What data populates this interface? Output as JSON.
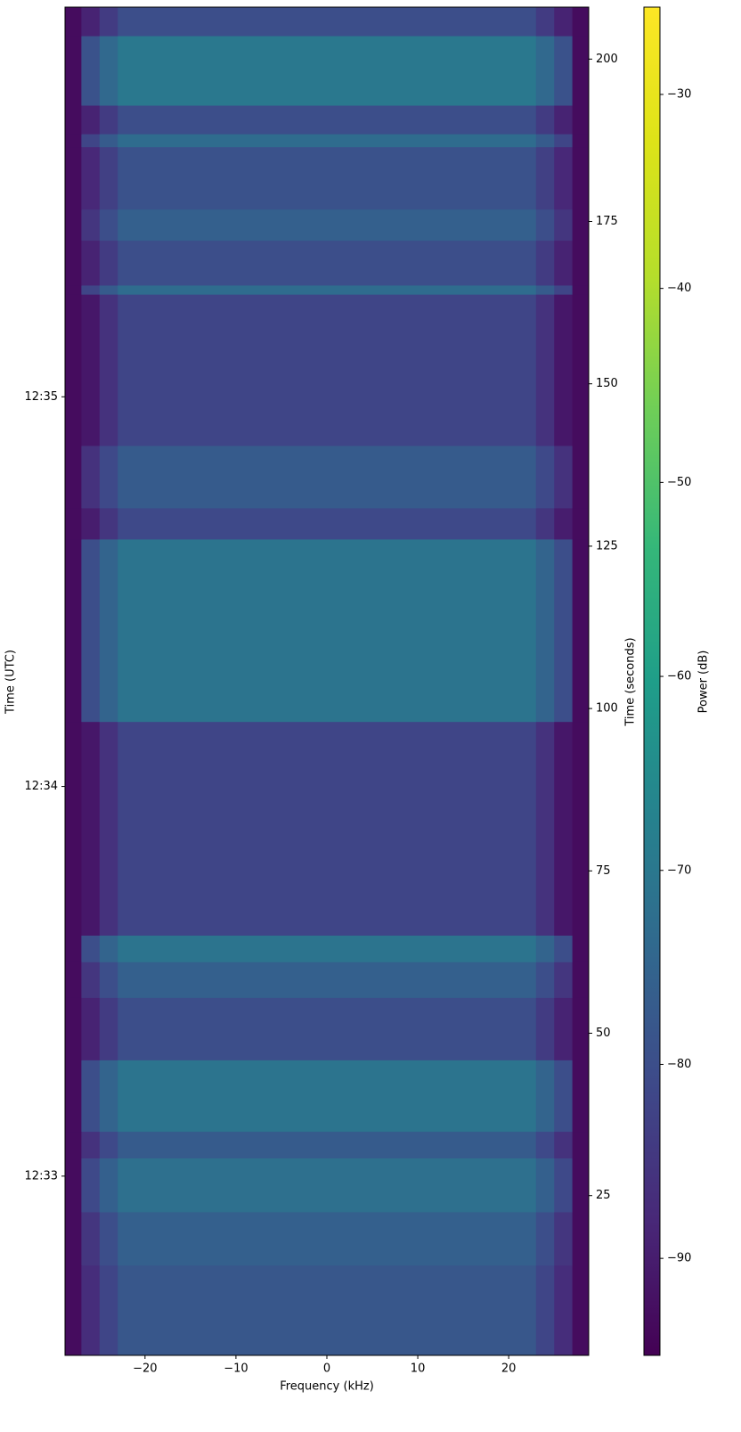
{
  "chart_data": {
    "type": "spectrogram",
    "xlabel": "Frequency (kHz)",
    "ylabel": "Time (UTC)",
    "y2label": "Time (seconds)",
    "colorbar_label": "Power (dB)",
    "colormap": "viridis",
    "freq_bins": [
      -28.8,
      -27,
      -25,
      -23,
      23,
      25,
      27,
      28.8
    ],
    "time_bins": [
      0.4,
      14.3,
      22.5,
      30.8,
      34.9,
      45.9,
      55.5,
      61.0,
      65.1,
      98.0,
      126.1,
      130.9,
      140.5,
      163.8,
      165.2,
      172.1,
      176.9,
      186.5,
      188.5,
      192.9,
      203.6,
      208
    ],
    "z": [
      [
        -93,
        -87,
        -82,
        -78,
        -82,
        -87,
        -93
      ],
      [
        -93,
        -85,
        -80,
        -76,
        -80,
        -85,
        -93
      ],
      [
        -93,
        -81,
        -76,
        -72,
        -76,
        -81,
        -93
      ],
      [
        -93,
        -86,
        -81,
        -77,
        -81,
        -86,
        -93
      ],
      [
        -93,
        -80,
        -75,
        -71,
        -75,
        -80,
        -93
      ],
      [
        -93,
        -89,
        -84,
        -80,
        -84,
        -89,
        -93
      ],
      [
        -93,
        -85,
        -80,
        -76,
        -80,
        -85,
        -93
      ],
      [
        -93,
        -80,
        -75,
        -71,
        -75,
        -80,
        -93
      ],
      [
        -93,
        -91,
        -86,
        -82,
        -86,
        -91,
        -93
      ],
      [
        -93,
        -80,
        -75,
        -71,
        -75,
        -80,
        -93
      ],
      [
        -93,
        -90,
        -85,
        -81,
        -85,
        -90,
        -93
      ],
      [
        -93,
        -86,
        -81,
        -77,
        -81,
        -86,
        -93
      ],
      [
        -93,
        -91,
        -86,
        -82,
        -86,
        -91,
        -93
      ],
      [
        -93,
        -82,
        -77,
        -73,
        -77,
        -82,
        -93
      ],
      [
        -93,
        -89,
        -84,
        -80,
        -84,
        -89,
        -93
      ],
      [
        -93,
        -85,
        -80,
        -76,
        -80,
        -85,
        -93
      ],
      [
        -93,
        -88,
        -83,
        -79,
        -83,
        -88,
        -93
      ],
      [
        -93,
        -82,
        -77,
        -73,
        -77,
        -82,
        -93
      ],
      [
        -93,
        -89,
        -84,
        -80,
        -84,
        -89,
        -93
      ],
      [
        -93,
        -79,
        -74,
        -70,
        -74,
        -79,
        -93
      ],
      [
        -93,
        -89,
        -84,
        -80,
        -84,
        -89,
        -93
      ]
    ],
    "xlim": [
      -28.8,
      28.8
    ],
    "xticks": [
      {
        "value": -20,
        "label": "−20"
      },
      {
        "value": -10,
        "label": "−10"
      },
      0,
      10,
      20
    ],
    "ylim": [
      0.4,
      208
    ],
    "yticks": [
      {
        "value": 28,
        "label": "12:33"
      },
      {
        "value": 88,
        "label": "12:34"
      },
      {
        "value": 148,
        "label": "12:35"
      }
    ],
    "y2lim": [
      0.4,
      208
    ],
    "y2ticks": [
      25,
      50,
      75,
      100,
      125,
      150,
      175,
      200
    ],
    "clim": [
      -95,
      -25.5
    ],
    "cticks": [
      {
        "value": -90,
        "label": "−90"
      },
      {
        "value": -80,
        "label": "−80"
      },
      {
        "value": -70,
        "label": "−70"
      },
      {
        "value": -60,
        "label": "−60"
      },
      {
        "value": -50,
        "label": "−50"
      },
      {
        "value": -40,
        "label": "−40"
      },
      {
        "value": -30,
        "label": "−30"
      }
    ]
  }
}
